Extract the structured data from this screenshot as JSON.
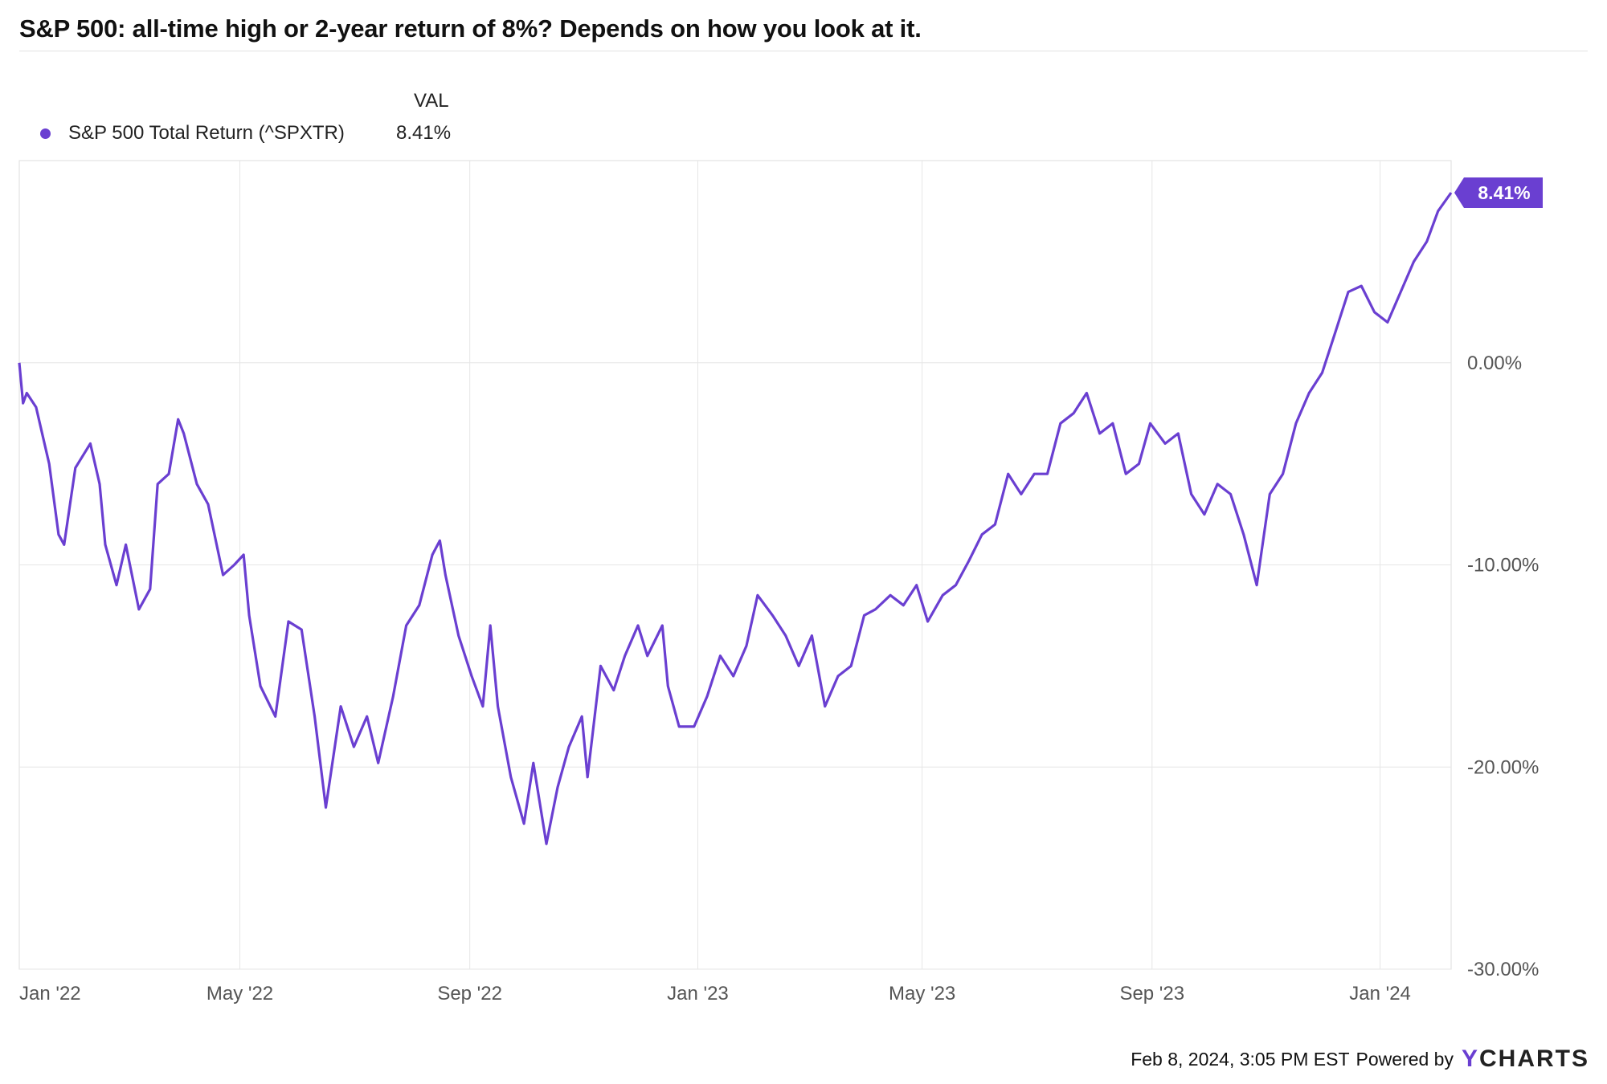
{
  "title": "S&P 500: all-time high or 2-year return of 8%? Depends on how you look at it.",
  "legend": {
    "column_header": "VAL",
    "series_label": "S&P 500 Total Return (^SPXTR)",
    "series_value": "8.41%"
  },
  "footer": {
    "timestamp": "Feb 8, 2024, 3:05 PM EST",
    "powered_by": "Powered by",
    "brand_prefix": "Y",
    "brand_rest": "CHARTS"
  },
  "colors": {
    "series": "#6a3fd1",
    "grid": "#e6e6e6",
    "axis_text": "#555555"
  },
  "chart_data": {
    "type": "line",
    "title": "S&P 500: all-time high or 2-year return of 8%? Depends on how you look at it.",
    "xlabel": "",
    "ylabel": "",
    "x_tick_labels": [
      "Jan '22",
      "May '22",
      "Sep '22",
      "Jan '23",
      "May '23",
      "Sep '23",
      "Jan '24"
    ],
    "y_tick_labels": [
      "0.00%",
      "-10.00%",
      "-20.00%",
      "-30.00%"
    ],
    "y_ticks": [
      0,
      -10,
      -20,
      -30
    ],
    "ylim": [
      -30,
      10
    ],
    "grid": true,
    "end_label": "8.41%",
    "series": [
      {
        "name": "S&P 500 Total Return (^SPXTR)",
        "value_label": "8.41%",
        "points": [
          [
            "2022-01-03",
            0.0
          ],
          [
            "2022-01-05",
            -2.0
          ],
          [
            "2022-01-07",
            -1.5
          ],
          [
            "2022-01-12",
            -2.2
          ],
          [
            "2022-01-19",
            -5.0
          ],
          [
            "2022-01-24",
            -8.5
          ],
          [
            "2022-01-27",
            -9.0
          ],
          [
            "2022-02-02",
            -5.2
          ],
          [
            "2022-02-10",
            -4.0
          ],
          [
            "2022-02-15",
            -6.0
          ],
          [
            "2022-02-18",
            -9.0
          ],
          [
            "2022-02-24",
            -11.0
          ],
          [
            "2022-03-01",
            -9.0
          ],
          [
            "2022-03-08",
            -12.2
          ],
          [
            "2022-03-14",
            -11.2
          ],
          [
            "2022-03-18",
            -6.0
          ],
          [
            "2022-03-24",
            -5.5
          ],
          [
            "2022-03-29",
            -2.8
          ],
          [
            "2022-04-01",
            -3.5
          ],
          [
            "2022-04-08",
            -6.0
          ],
          [
            "2022-04-14",
            -7.0
          ],
          [
            "2022-04-22",
            -10.5
          ],
          [
            "2022-04-28",
            -10.0
          ],
          [
            "2022-05-03",
            -9.5
          ],
          [
            "2022-05-06",
            -12.5
          ],
          [
            "2022-05-12",
            -16.0
          ],
          [
            "2022-05-20",
            -17.5
          ],
          [
            "2022-05-27",
            -12.8
          ],
          [
            "2022-06-03",
            -13.2
          ],
          [
            "2022-06-10",
            -17.5
          ],
          [
            "2022-06-16",
            -22.0
          ],
          [
            "2022-06-24",
            -17.0
          ],
          [
            "2022-07-01",
            -19.0
          ],
          [
            "2022-07-08",
            -17.5
          ],
          [
            "2022-07-14",
            -19.8
          ],
          [
            "2022-07-22",
            -16.5
          ],
          [
            "2022-07-29",
            -13.0
          ],
          [
            "2022-08-05",
            -12.0
          ],
          [
            "2022-08-12",
            -9.5
          ],
          [
            "2022-08-16",
            -8.8
          ],
          [
            "2022-08-19",
            -10.5
          ],
          [
            "2022-08-26",
            -13.5
          ],
          [
            "2022-09-02",
            -15.5
          ],
          [
            "2022-09-08",
            -17.0
          ],
          [
            "2022-09-12",
            -13.0
          ],
          [
            "2022-09-16",
            -17.0
          ],
          [
            "2022-09-23",
            -20.5
          ],
          [
            "2022-09-30",
            -22.8
          ],
          [
            "2022-10-05",
            -19.8
          ],
          [
            "2022-10-12",
            -23.8
          ],
          [
            "2022-10-18",
            -21.0
          ],
          [
            "2022-10-24",
            -19.0
          ],
          [
            "2022-10-31",
            -17.5
          ],
          [
            "2022-11-03",
            -20.5
          ],
          [
            "2022-11-10",
            -15.0
          ],
          [
            "2022-11-17",
            -16.2
          ],
          [
            "2022-11-23",
            -14.5
          ],
          [
            "2022-11-30",
            -13.0
          ],
          [
            "2022-12-05",
            -14.5
          ],
          [
            "2022-12-13",
            -13.0
          ],
          [
            "2022-12-16",
            -16.0
          ],
          [
            "2022-12-22",
            -18.0
          ],
          [
            "2022-12-30",
            -18.0
          ],
          [
            "2023-01-06",
            -16.5
          ],
          [
            "2023-01-13",
            -14.5
          ],
          [
            "2023-01-20",
            -15.5
          ],
          [
            "2023-01-27",
            -14.0
          ],
          [
            "2023-02-02",
            -11.5
          ],
          [
            "2023-02-10",
            -12.5
          ],
          [
            "2023-02-17",
            -13.5
          ],
          [
            "2023-02-24",
            -15.0
          ],
          [
            "2023-03-03",
            -13.5
          ],
          [
            "2023-03-10",
            -17.0
          ],
          [
            "2023-03-17",
            -15.5
          ],
          [
            "2023-03-24",
            -15.0
          ],
          [
            "2023-03-31",
            -12.5
          ],
          [
            "2023-04-06",
            -12.2
          ],
          [
            "2023-04-14",
            -11.5
          ],
          [
            "2023-04-21",
            -12.0
          ],
          [
            "2023-04-28",
            -11.0
          ],
          [
            "2023-05-04",
            -12.8
          ],
          [
            "2023-05-12",
            -11.5
          ],
          [
            "2023-05-19",
            -11.0
          ],
          [
            "2023-05-26",
            -9.8
          ],
          [
            "2023-06-02",
            -8.5
          ],
          [
            "2023-06-09",
            -8.0
          ],
          [
            "2023-06-16",
            -5.5
          ],
          [
            "2023-06-23",
            -6.5
          ],
          [
            "2023-06-30",
            -5.5
          ],
          [
            "2023-07-07",
            -5.5
          ],
          [
            "2023-07-14",
            -3.0
          ],
          [
            "2023-07-21",
            -2.5
          ],
          [
            "2023-07-28",
            -1.5
          ],
          [
            "2023-08-04",
            -3.5
          ],
          [
            "2023-08-11",
            -3.0
          ],
          [
            "2023-08-18",
            -5.5
          ],
          [
            "2023-08-25",
            -5.0
          ],
          [
            "2023-08-31",
            -3.0
          ],
          [
            "2023-09-08",
            -4.0
          ],
          [
            "2023-09-15",
            -3.5
          ],
          [
            "2023-09-22",
            -6.5
          ],
          [
            "2023-09-29",
            -7.5
          ],
          [
            "2023-10-06",
            -6.0
          ],
          [
            "2023-10-13",
            -6.5
          ],
          [
            "2023-10-20",
            -8.5
          ],
          [
            "2023-10-27",
            -11.0
          ],
          [
            "2023-11-03",
            -6.5
          ],
          [
            "2023-11-10",
            -5.5
          ],
          [
            "2023-11-17",
            -3.0
          ],
          [
            "2023-11-24",
            -1.5
          ],
          [
            "2023-12-01",
            -0.5
          ],
          [
            "2023-12-08",
            1.5
          ],
          [
            "2023-12-15",
            3.5
          ],
          [
            "2023-12-22",
            3.8
          ],
          [
            "2023-12-29",
            2.5
          ],
          [
            "2024-01-05",
            2.0
          ],
          [
            "2024-01-12",
            3.5
          ],
          [
            "2024-01-19",
            5.0
          ],
          [
            "2024-01-26",
            6.0
          ],
          [
            "2024-02-01",
            7.5
          ],
          [
            "2024-02-08",
            8.41
          ]
        ]
      }
    ]
  }
}
